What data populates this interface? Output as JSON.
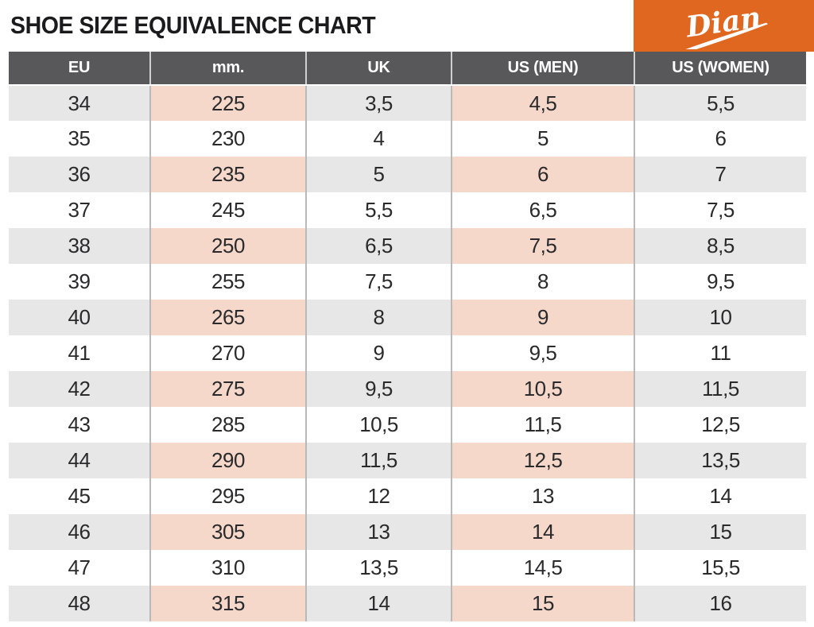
{
  "page": {
    "title": "SHOE SIZE EQUIVALENCE CHART"
  },
  "brand": {
    "logo_text": "Dian",
    "badge_color": "#e0671f"
  },
  "colors": {
    "accent_orange": "#e0671f",
    "header_gray": "#58585b",
    "row_gray": "#e7e7e7",
    "row_highlight_pink": "#f6d8ca",
    "text_dark": "#2a2a2c",
    "divider_gray": "#b9b9b9"
  },
  "chart_data": {
    "type": "table",
    "title": "SHOE SIZE EQUIVALENCE CHART",
    "columns": [
      "EU",
      "mm.",
      "UK",
      "US (MEN)",
      "US (WOMEN)"
    ],
    "highlight_columns": [
      "mm.",
      "US (MEN)"
    ],
    "highlight_column_indexes": [
      1,
      3
    ],
    "shaded_rows": "odd rows starting with first (EU 34, 36, 38, ...)",
    "rows": [
      [
        "34",
        "225",
        "3,5",
        "4,5",
        "5,5"
      ],
      [
        "35",
        "230",
        "4",
        "5",
        "6"
      ],
      [
        "36",
        "235",
        "5",
        "6",
        "7"
      ],
      [
        "37",
        "245",
        "5,5",
        "6,5",
        "7,5"
      ],
      [
        "38",
        "250",
        "6,5",
        "7,5",
        "8,5"
      ],
      [
        "39",
        "255",
        "7,5",
        "8",
        "9,5"
      ],
      [
        "40",
        "265",
        "8",
        "9",
        "10"
      ],
      [
        "41",
        "270",
        "9",
        "9,5",
        "11"
      ],
      [
        "42",
        "275",
        "9,5",
        "10,5",
        "11,5"
      ],
      [
        "43",
        "285",
        "10,5",
        "11,5",
        "12,5"
      ],
      [
        "44",
        "290",
        "11,5",
        "12,5",
        "13,5"
      ],
      [
        "45",
        "295",
        "12",
        "13",
        "14"
      ],
      [
        "46",
        "305",
        "13",
        "14",
        "15"
      ],
      [
        "47",
        "310",
        "13,5",
        "14,5",
        "15,5"
      ],
      [
        "48",
        "315",
        "14",
        "15",
        "16"
      ]
    ]
  }
}
